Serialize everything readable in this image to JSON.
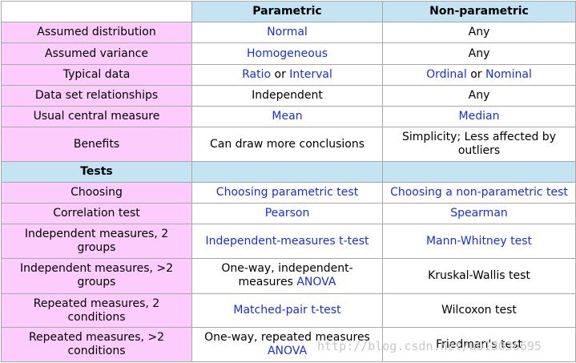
{
  "table": {
    "headers": [
      "",
      "Parametric",
      "Non-parametric"
    ],
    "rows": [
      {
        "label": "Assumed distribution",
        "p": [
          {
            "t": "Normal",
            "link": true
          }
        ],
        "np": [
          {
            "t": "Any",
            "link": false
          }
        ]
      },
      {
        "label": "Assumed variance",
        "p": [
          {
            "t": "Homogeneous",
            "link": true
          }
        ],
        "np": [
          {
            "t": "Any",
            "link": false
          }
        ]
      },
      {
        "label": "Typical data",
        "p": [
          {
            "t": "Ratio",
            "link": true
          },
          {
            "t": " or ",
            "link": false
          },
          {
            "t": "Interval",
            "link": true
          }
        ],
        "np": [
          {
            "t": "Ordinal",
            "link": true
          },
          {
            "t": " or ",
            "link": false
          },
          {
            "t": "Nominal",
            "link": true
          }
        ]
      },
      {
        "label": "Data set relationships",
        "p": [
          {
            "t": "Independent",
            "link": false
          }
        ],
        "np": [
          {
            "t": "Any",
            "link": false
          }
        ]
      },
      {
        "label": "Usual central measure",
        "p": [
          {
            "t": "Mean",
            "link": true
          }
        ],
        "np": [
          {
            "t": "Median",
            "link": true
          }
        ]
      },
      {
        "label": "Benefits",
        "p": [
          {
            "t": "Can draw more conclusions",
            "link": false
          }
        ],
        "np": [
          {
            "t": "Simplicity; Less affected by outliers",
            "link": false
          }
        ]
      }
    ],
    "tests_header": "Tests",
    "test_rows": [
      {
        "label": "Choosing",
        "p": [
          {
            "t": "Choosing parametric test",
            "link": true
          }
        ],
        "np": [
          {
            "t": "Choosing a non-parametric test",
            "link": true
          }
        ]
      },
      {
        "label": "Correlation test",
        "p": [
          {
            "t": "Pearson",
            "link": true
          }
        ],
        "np": [
          {
            "t": "Spearman",
            "link": true
          }
        ]
      },
      {
        "label": "Independent measures, 2 groups",
        "p": [
          {
            "t": "Independent-measures t-test",
            "link": true
          }
        ],
        "np": [
          {
            "t": "Mann-Whitney test",
            "link": true
          }
        ]
      },
      {
        "label": "Independent measures, >2 groups",
        "p": [
          {
            "t": "One-way, independent-measures ",
            "link": false
          },
          {
            "t": "ANOVA",
            "link": true
          }
        ],
        "np": [
          {
            "t": "Kruskal-Wallis test",
            "link": false
          }
        ]
      },
      {
        "label": "Repeated measures, 2 conditions",
        "p": [
          {
            "t": "Matched-pair t-test",
            "link": true
          }
        ],
        "np": [
          {
            "t": "Wilcoxon test",
            "link": false
          }
        ]
      },
      {
        "label": "Repeated measures, >2 conditions",
        "p": [
          {
            "t": "One-way, repeated measures ",
            "link": false
          },
          {
            "t": "ANOVA",
            "link": true
          }
        ],
        "np": [
          {
            "t": "Friedman's test",
            "link": false
          }
        ]
      }
    ]
  },
  "watermark": "http://blog.csdn.net/u013036695",
  "colors": {
    "label_bg": "#fcccfc",
    "header_bg": "#c4e4f4",
    "link": "#1a2fd6",
    "border": "#a8a8a8"
  }
}
